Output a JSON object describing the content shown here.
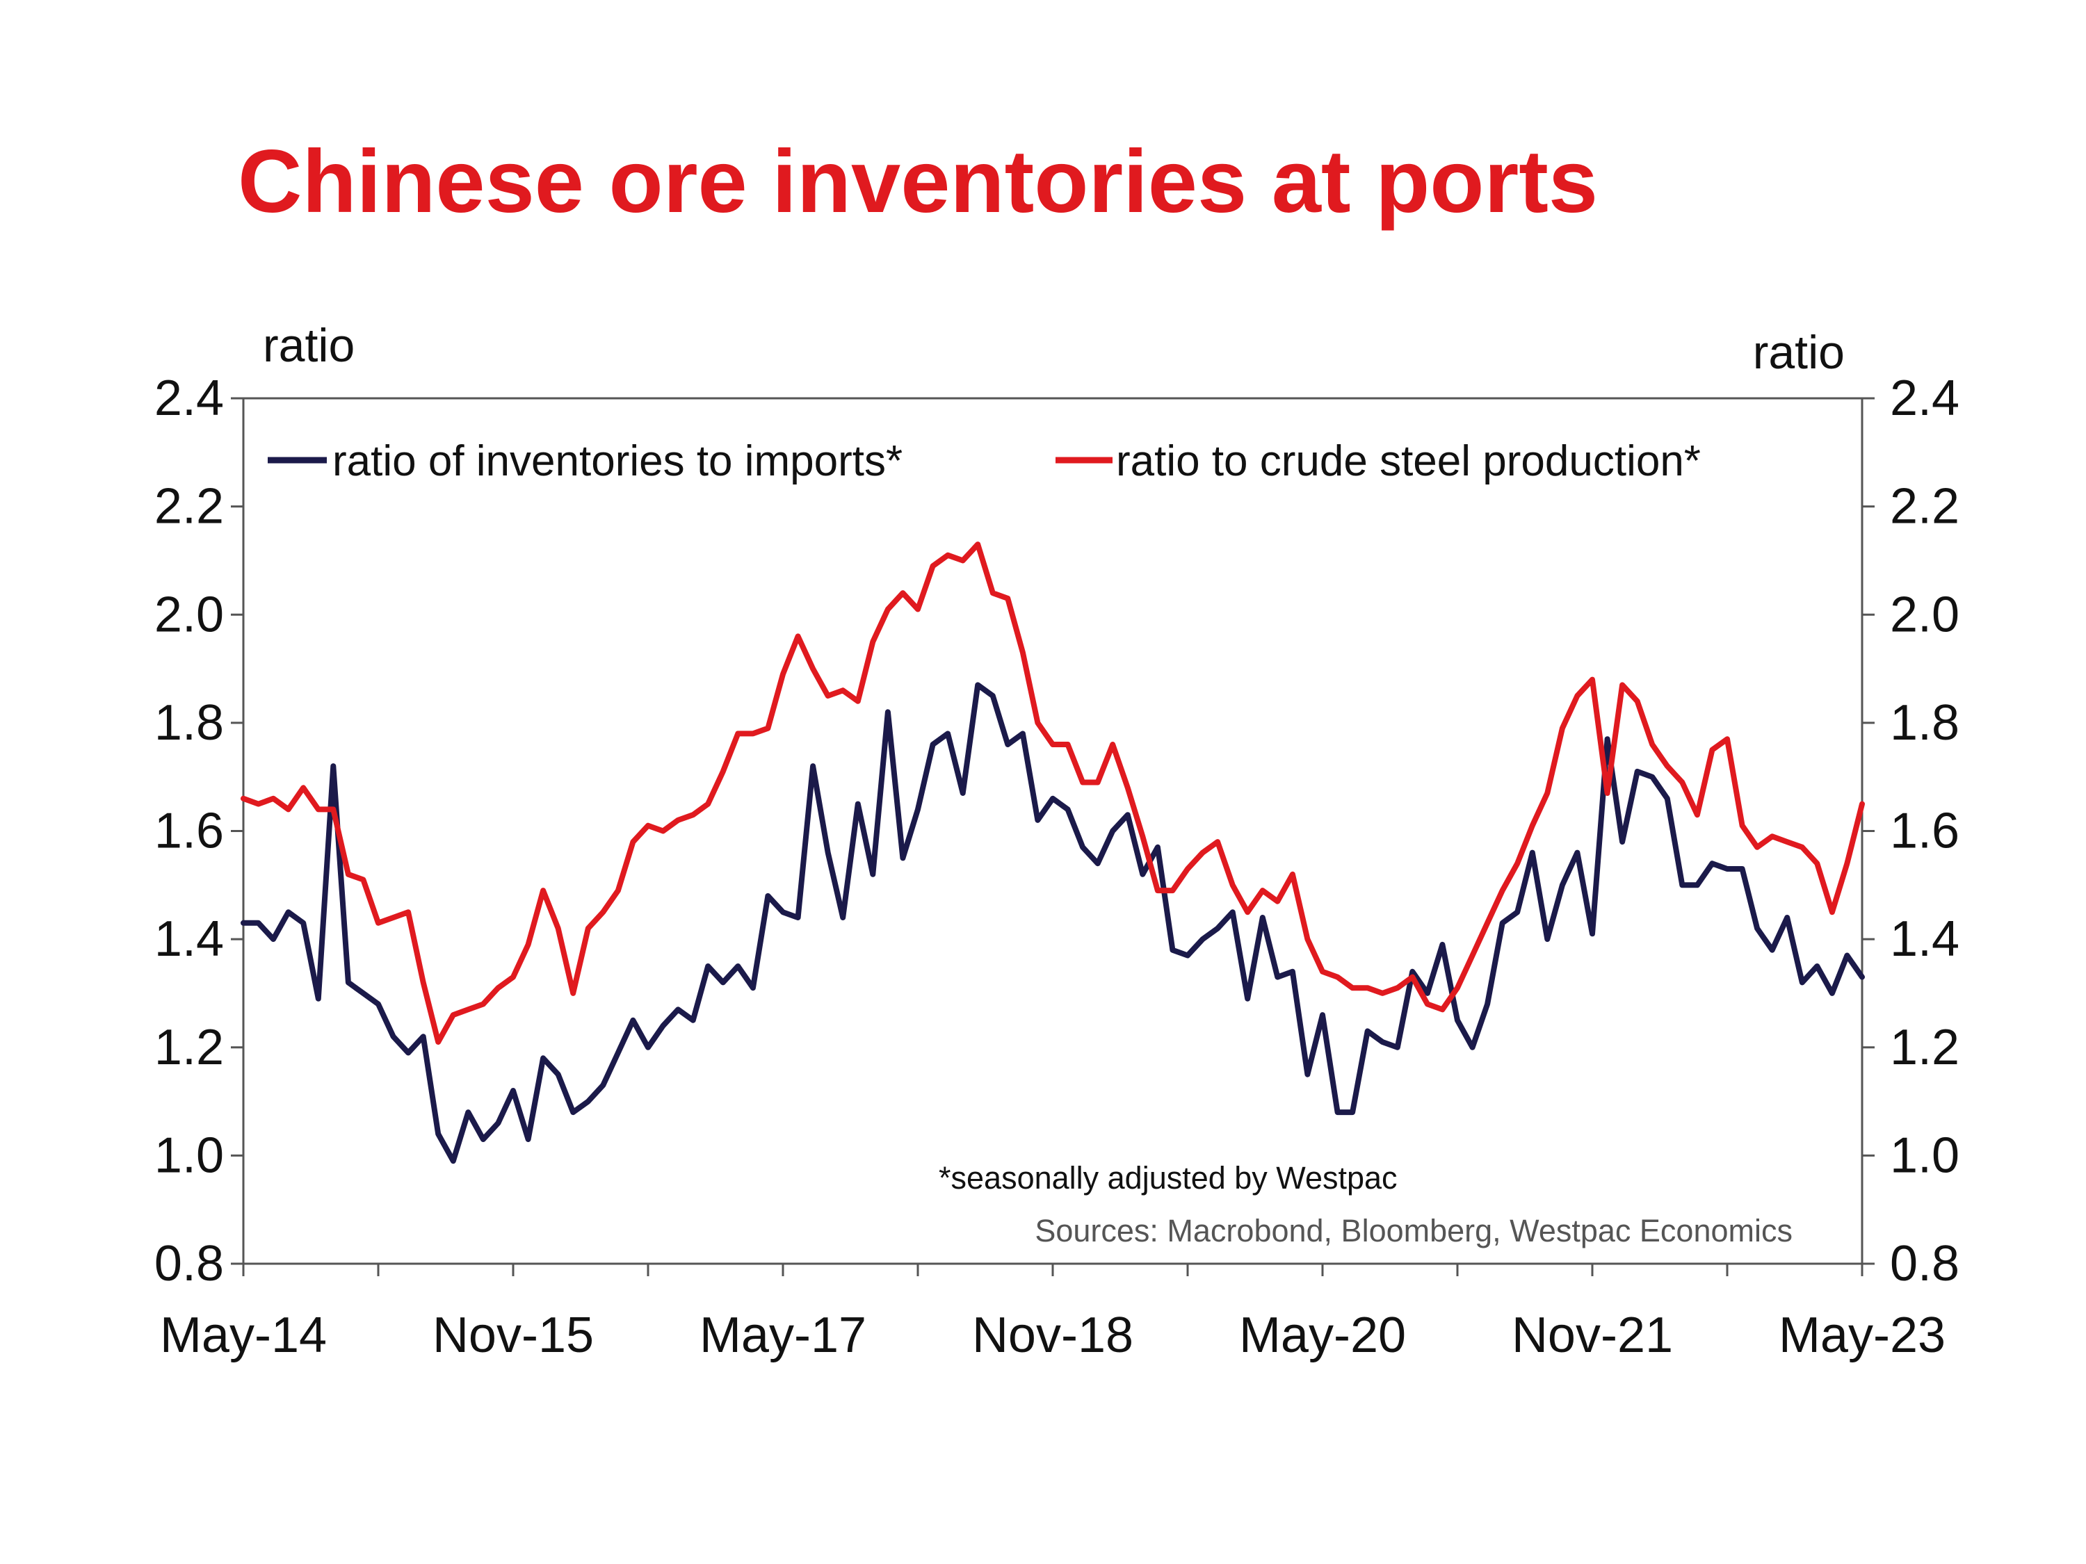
{
  "colors": {
    "title": "#e01a1f",
    "series_imports": "#1b1a4a",
    "series_steel": "#e01a1f",
    "axis": "#555555"
  },
  "chart_data": {
    "type": "line",
    "title": "Chinese ore inventories at ports",
    "left_unit": "ratio",
    "right_unit": "ratio",
    "ylim": [
      0.8,
      2.4
    ],
    "yticks": [
      "0.8",
      "1.0",
      "1.2",
      "1.4",
      "1.6",
      "1.8",
      "2.0",
      "2.2",
      "2.4"
    ],
    "xlim": [
      "2014-05",
      "2023-05"
    ],
    "xticks": [
      {
        "date": "2014-05",
        "label": "May-14"
      },
      {
        "date": "2015-11",
        "label": "Nov-15"
      },
      {
        "date": "2017-05",
        "label": "May-17"
      },
      {
        "date": "2018-11",
        "label": "Nov-18"
      },
      {
        "date": "2020-05",
        "label": "May-20"
      },
      {
        "date": "2021-11",
        "label": "Nov-21"
      },
      {
        "date": "2023-05",
        "label": "May-23"
      }
    ],
    "legend_position": "top",
    "grid": false,
    "start": "2014-05",
    "frequency": "monthly",
    "series": [
      {
        "name": "ratio of inventories to imports*",
        "values": [
          1.43,
          1.43,
          1.4,
          1.45,
          1.43,
          1.29,
          1.72,
          1.32,
          1.3,
          1.28,
          1.22,
          1.19,
          1.22,
          1.04,
          0.99,
          1.08,
          1.03,
          1.06,
          1.12,
          1.03,
          1.18,
          1.15,
          1.08,
          1.1,
          1.13,
          1.19,
          1.25,
          1.2,
          1.24,
          1.27,
          1.25,
          1.35,
          1.32,
          1.35,
          1.31,
          1.48,
          1.45,
          1.44,
          1.72,
          1.56,
          1.44,
          1.65,
          1.52,
          1.82,
          1.55,
          1.64,
          1.76,
          1.78,
          1.67,
          1.87,
          1.85,
          1.76,
          1.78,
          1.62,
          1.66,
          1.64,
          1.57,
          1.54,
          1.6,
          1.63,
          1.52,
          1.57,
          1.38,
          1.37,
          1.4,
          1.42,
          1.45,
          1.29,
          1.44,
          1.33,
          1.34,
          1.15,
          1.26,
          1.08,
          1.08,
          1.23,
          1.21,
          1.2,
          1.34,
          1.3,
          1.39,
          1.25,
          1.2,
          1.28,
          1.43,
          1.45,
          1.56,
          1.4,
          1.5,
          1.56,
          1.41,
          1.77,
          1.58,
          1.71,
          1.7,
          1.66,
          1.5,
          1.5,
          1.54,
          1.53,
          1.53,
          1.42,
          1.38,
          1.44,
          1.32,
          1.35,
          1.3,
          1.37,
          1.33
        ]
      },
      {
        "name": "ratio to crude steel production*",
        "values": [
          1.66,
          1.65,
          1.66,
          1.64,
          1.68,
          1.64,
          1.64,
          1.52,
          1.51,
          1.43,
          1.44,
          1.45,
          1.32,
          1.21,
          1.26,
          1.27,
          1.28,
          1.31,
          1.33,
          1.39,
          1.49,
          1.42,
          1.3,
          1.42,
          1.45,
          1.49,
          1.58,
          1.61,
          1.6,
          1.62,
          1.63,
          1.65,
          1.71,
          1.78,
          1.78,
          1.79,
          1.89,
          1.96,
          1.9,
          1.85,
          1.86,
          1.84,
          1.95,
          2.01,
          2.04,
          2.01,
          2.09,
          2.11,
          2.1,
          2.13,
          2.04,
          2.03,
          1.93,
          1.8,
          1.76,
          1.76,
          1.69,
          1.69,
          1.76,
          1.68,
          1.59,
          1.49,
          1.49,
          1.53,
          1.56,
          1.58,
          1.5,
          1.45,
          1.49,
          1.47,
          1.52,
          1.4,
          1.34,
          1.33,
          1.31,
          1.31,
          1.3,
          1.31,
          1.33,
          1.28,
          1.27,
          1.31,
          1.37,
          1.43,
          1.49,
          1.54,
          1.61,
          1.67,
          1.79,
          1.85,
          1.88,
          1.67,
          1.87,
          1.84,
          1.76,
          1.72,
          1.69,
          1.63,
          1.75,
          1.77,
          1.61,
          1.57,
          1.59,
          1.58,
          1.57,
          1.54,
          1.45,
          1.54,
          1.65
        ]
      }
    ],
    "annotations": [
      "*seasonally adjusted by Westpac",
      "Sources: Macrobond, Bloomberg, Westpac Economics"
    ]
  }
}
